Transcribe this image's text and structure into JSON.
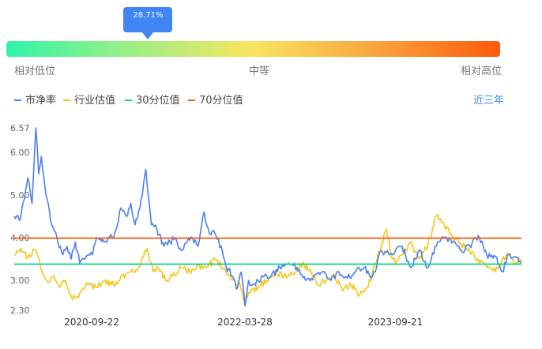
{
  "gauge": {
    "percentile_label": "28.71%",
    "percentile": 0.2871,
    "low_label": "相对低位",
    "mid_label": "中等",
    "high_label": "相对高位"
  },
  "legend": {
    "pb": "市净率",
    "industry": "行业估值",
    "p30": "30分位值",
    "p70": "70分位值"
  },
  "range_label": "近三年",
  "colors": {
    "pb": "#4a7ff0",
    "industry": "#f5c518",
    "p30": "#19d38c",
    "p70": "#f2621b",
    "accent": "#3f86f4"
  },
  "chart_data": {
    "type": "line",
    "title": "",
    "xlabel": "",
    "ylabel": "",
    "ylim": [
      2.3,
      6.57
    ],
    "yticks": [
      "6.57",
      "6.00",
      "5.00",
      "4.00",
      "3.00",
      "2.30"
    ],
    "ytick_values": [
      6.57,
      6.0,
      5.0,
      4.0,
      3.0,
      2.3
    ],
    "xticks": [
      "2020-09-22",
      "2022-03-28",
      "2023-09-21"
    ],
    "x_range": [
      "2019-12-18",
      "2024-12-18"
    ],
    "reference_lines": [
      {
        "name": "30分位值",
        "value": 3.38
      },
      {
        "name": "70分位值",
        "value": 3.99
      }
    ],
    "series": [
      {
        "name": "市净率",
        "x": [
          "2019-12-18",
          "2020-01-10",
          "2020-02-05",
          "2020-02-20",
          "2020-03-05",
          "2020-03-15",
          "2020-03-25",
          "2020-04-10",
          "2020-05-01",
          "2020-05-20",
          "2020-06-10",
          "2020-06-25",
          "2020-07-10",
          "2020-07-25",
          "2020-08-10",
          "2020-08-25",
          "2020-09-10",
          "2020-09-25",
          "2020-10-10",
          "2020-10-20",
          "2020-11-05",
          "2020-11-20",
          "2020-12-10",
          "2021-01-05",
          "2021-01-25",
          "2021-02-10",
          "2021-02-25",
          "2021-03-15",
          "2021-04-05",
          "2021-04-25",
          "2021-05-15",
          "2021-06-10",
          "2021-07-01",
          "2021-07-20",
          "2021-08-10",
          "2021-09-01",
          "2021-09-20",
          "2021-10-10",
          "2021-11-01",
          "2021-11-20",
          "2021-12-10",
          "2022-01-05",
          "2022-01-20",
          "2022-02-10",
          "2022-02-25",
          "2022-03-15",
          "2022-03-28",
          "2022-04-10",
          "2022-04-25",
          "2022-05-15",
          "2022-06-05",
          "2022-07-01",
          "2022-08-01",
          "2022-09-01",
          "2022-10-01",
          "2022-11-01",
          "2022-12-01",
          "2023-01-01",
          "2023-02-01",
          "2023-03-01",
          "2023-04-01",
          "2023-05-01",
          "2023-06-01",
          "2023-07-01",
          "2023-08-01",
          "2023-09-01",
          "2023-09-21",
          "2023-10-15",
          "2023-11-15",
          "2023-12-15",
          "2024-01-15",
          "2024-02-15",
          "2024-03-15",
          "2024-04-15",
          "2024-05-15",
          "2024-06-15",
          "2024-07-15",
          "2024-08-15",
          "2024-09-15",
          "2024-10-10",
          "2024-11-01",
          "2024-11-20",
          "2024-12-18"
        ],
        "values": [
          4.5,
          4.45,
          5.4,
          4.8,
          6.57,
          5.5,
          5.9,
          5.0,
          4.3,
          4.0,
          3.6,
          3.8,
          3.5,
          3.9,
          3.4,
          3.5,
          3.6,
          3.6,
          4.0,
          3.95,
          3.9,
          4.0,
          4.0,
          4.7,
          4.5,
          4.8,
          4.3,
          4.7,
          5.6,
          4.3,
          4.2,
          3.8,
          3.9,
          4.0,
          3.7,
          3.9,
          4.0,
          3.8,
          4.6,
          4.1,
          4.1,
          3.7,
          3.3,
          3.1,
          2.8,
          3.2,
          2.4,
          3.0,
          2.9,
          3.0,
          3.1,
          3.1,
          3.3,
          3.4,
          3.3,
          3.0,
          3.1,
          3.2,
          3.0,
          3.2,
          3.05,
          3.2,
          3.3,
          3.1,
          3.7,
          3.6,
          3.7,
          3.8,
          3.3,
          3.7,
          3.3,
          3.8,
          4.0,
          3.9,
          3.7,
          3.8,
          4.05,
          3.6,
          3.55,
          3.2,
          3.6,
          3.55,
          3.4
        ]
      },
      {
        "name": "行业估值",
        "x": [
          "2019-12-18",
          "2020-01-10",
          "2020-02-05",
          "2020-03-05",
          "2020-04-01",
          "2020-04-20",
          "2020-05-10",
          "2020-06-01",
          "2020-06-20",
          "2020-07-15",
          "2020-08-10",
          "2020-09-10",
          "2020-10-10",
          "2020-11-10",
          "2020-12-10",
          "2021-01-10",
          "2021-02-10",
          "2021-03-10",
          "2021-04-10",
          "2021-05-01",
          "2021-05-20",
          "2021-06-15",
          "2021-07-10",
          "2021-08-10",
          "2021-09-10",
          "2021-10-10",
          "2021-11-10",
          "2021-12-10",
          "2022-01-10",
          "2022-02-10",
          "2022-03-10",
          "2022-03-28",
          "2022-04-15",
          "2022-05-15",
          "2022-06-15",
          "2022-07-15",
          "2022-08-15",
          "2022-09-15",
          "2022-10-15",
          "2022-11-15",
          "2022-12-15",
          "2023-01-15",
          "2023-02-15",
          "2023-03-15",
          "2023-04-15",
          "2023-05-15",
          "2023-06-15",
          "2023-07-10",
          "2023-08-01",
          "2023-08-20",
          "2023-09-10",
          "2023-09-21",
          "2023-10-15",
          "2023-11-15",
          "2023-12-15",
          "2024-01-15",
          "2024-02-15",
          "2024-03-15",
          "2024-04-15",
          "2024-05-15",
          "2024-06-15",
          "2024-07-15",
          "2024-08-15",
          "2024-09-15",
          "2024-10-10",
          "2024-11-01",
          "2024-11-20",
          "2024-12-18"
        ],
        "values": [
          3.6,
          3.75,
          3.55,
          3.7,
          3.1,
          2.95,
          3.1,
          2.85,
          3.0,
          2.55,
          2.7,
          2.9,
          2.85,
          3.0,
          2.9,
          3.1,
          3.2,
          3.3,
          3.75,
          3.2,
          3.3,
          3.0,
          3.1,
          3.3,
          3.2,
          3.35,
          3.3,
          3.5,
          3.3,
          3.0,
          2.9,
          2.5,
          2.7,
          2.85,
          3.0,
          3.2,
          3.1,
          3.15,
          3.4,
          3.25,
          2.9,
          3.0,
          3.1,
          2.75,
          2.9,
          2.65,
          2.85,
          3.4,
          3.8,
          4.2,
          3.5,
          3.4,
          3.6,
          3.9,
          3.5,
          3.8,
          4.5,
          4.3,
          4.0,
          3.85,
          3.7,
          3.5,
          3.3,
          3.2,
          3.5,
          3.6,
          3.4,
          3.5
        ]
      }
    ]
  }
}
